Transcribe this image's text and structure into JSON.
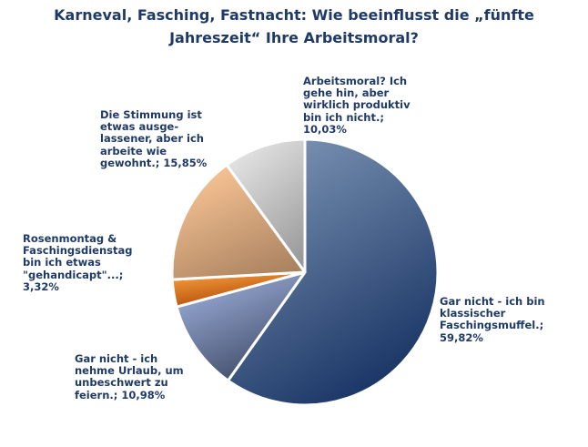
{
  "chart_data": {
    "type": "pie",
    "title_lines": [
      "Karneval, Fasching, Fastnacht: Wie beeinflusst die „fünfte",
      "Jahreszeit“ Ihre Arbeitsmoral?"
    ],
    "slices": [
      {
        "label_lines": [
          "Gar nicht - ich bin",
          "klassischer",
          "Faschingsmuffel.;",
          "59,82%"
        ],
        "value": 59.82,
        "colors": [
          "#7b93b3",
          "#132f60"
        ]
      },
      {
        "label_lines": [
          "Gar nicht - ich",
          "nehme Urlaub, um",
          "unbeschwert zu",
          "feiern.; 10,98%"
        ],
        "value": 10.98,
        "colors": [
          "#9db0dc",
          "#3b4560"
        ]
      },
      {
        "label_lines": [
          "Rosenmontag &",
          "Faschingsdienstag",
          "bin ich etwas",
          "\"gehandicapt\"...;",
          "3,32%"
        ],
        "value": 3.32,
        "colors": [
          "#f59a3a",
          "#a53e00"
        ]
      },
      {
        "label_lines": [
          "Die Stimmung ist",
          "etwas ausge-",
          "lassener, aber ich",
          "arbeite wie",
          "gewohnt.; 15,85%"
        ],
        "value": 15.85,
        "colors": [
          "#fbc697",
          "#a9825f"
        ]
      },
      {
        "label_lines": [
          "Arbeitsmoral? Ich",
          "gehe hin, aber",
          "wirklich produktiv",
          "bin ich nicht.;",
          "10,03%"
        ],
        "value": 10.03,
        "colors": [
          "#e6e6e6",
          "#9a9a9a"
        ]
      }
    ]
  }
}
